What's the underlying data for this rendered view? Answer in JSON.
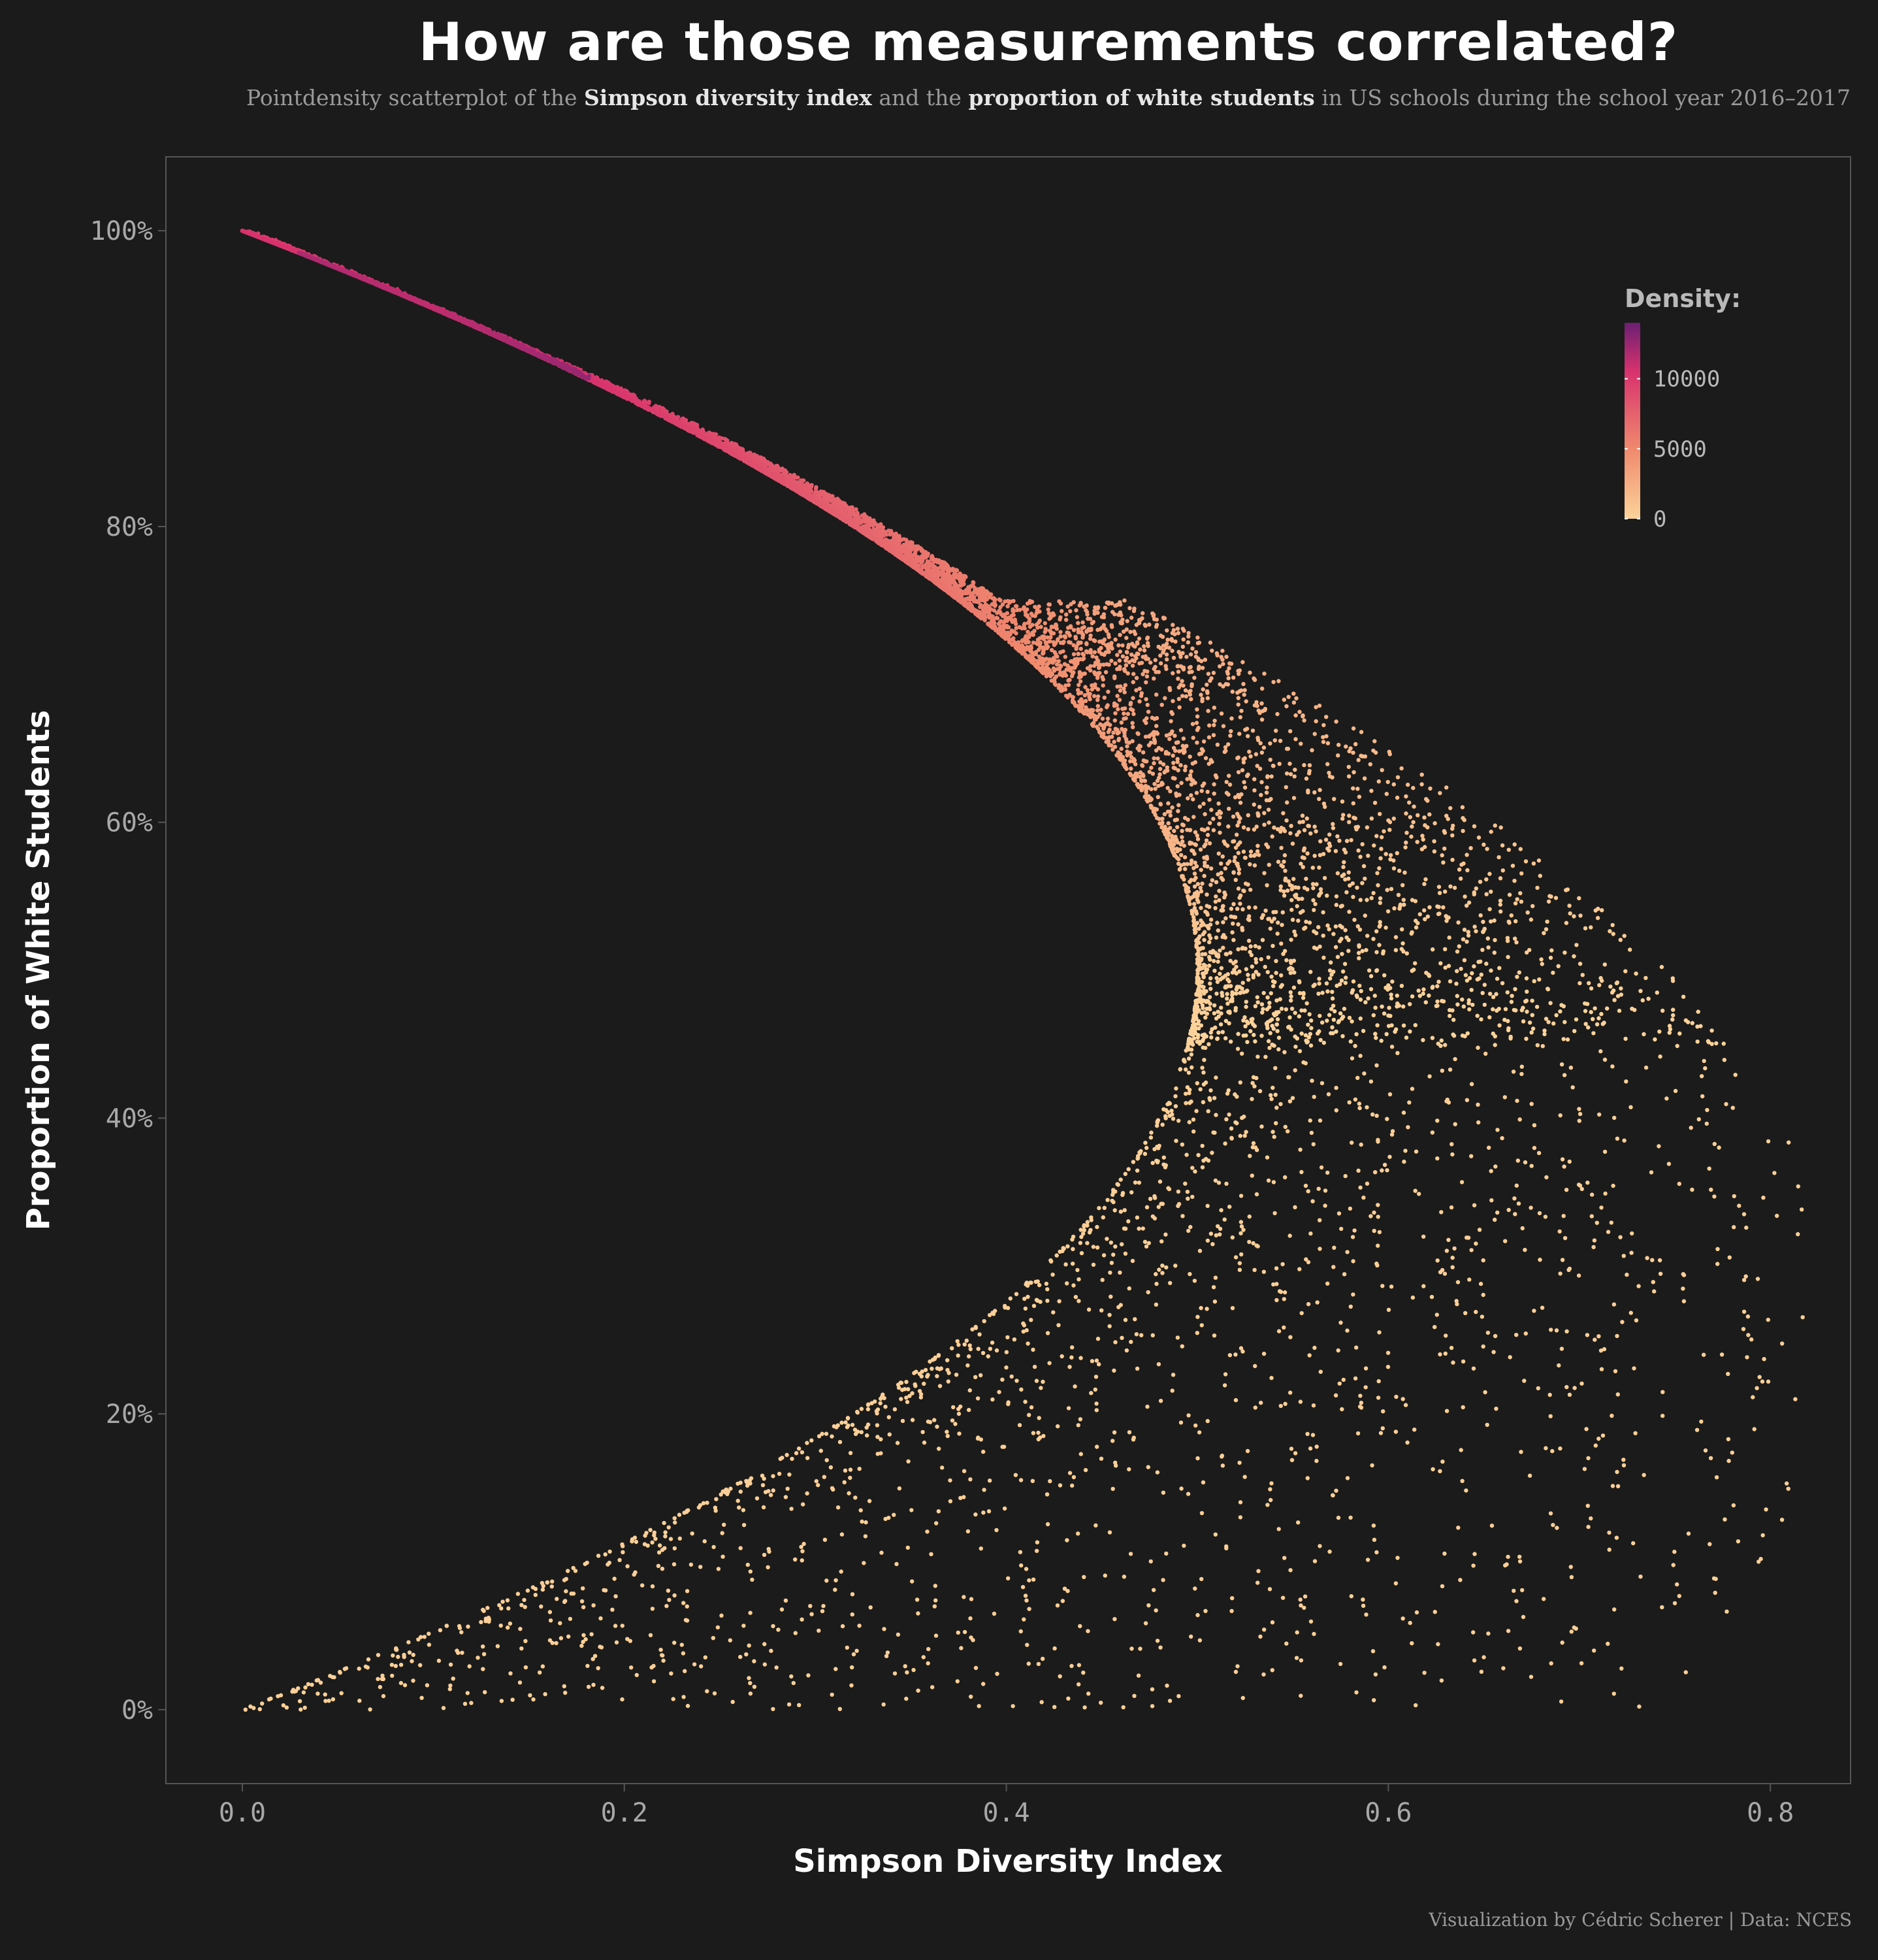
{
  "header": {
    "title": "How are those measurements correlated?",
    "subtitle_pre": "Pointdensity scatterplot of the ",
    "subtitle_b1": "Simpson diversity index",
    "subtitle_mid": " and the ",
    "subtitle_b2": "proportion of white students",
    "subtitle_post": " in US schools during the school year 2016–2017"
  },
  "caption": "Visualization by Cédric Scherer  |  Data: NCES",
  "colors": {
    "background": "#1b1b1b",
    "panel_border": "#555555",
    "axis_text": "#a8a8a8",
    "axis_title": "#ffffff",
    "density_low": "#fcd39a",
    "density_mid": "#f08a6e",
    "density_high": "#d8326d",
    "density_max": "#6b1f73"
  },
  "chart_data": {
    "type": "scatter",
    "xlabel": "Simpson Diversity Index",
    "ylabel": "Proportion of White Students",
    "xlim": [
      -0.04,
      0.842
    ],
    "ylim": [
      -0.05,
      1.05
    ],
    "x_ticks": [
      0.0,
      0.2,
      0.4,
      0.6,
      0.8
    ],
    "x_tick_labels": [
      "0.0",
      "0.2",
      "0.4",
      "0.6",
      "0.8"
    ],
    "y_ticks": [
      0,
      0.2,
      0.4,
      0.6,
      0.8,
      1.0
    ],
    "y_tick_labels": [
      "0%",
      "20%",
      "40%",
      "60%",
      "80%",
      "100%"
    ],
    "grid": false,
    "legend": {
      "title": "Density:",
      "position": "top-right",
      "range": [
        0,
        14000
      ],
      "ticks": [
        0,
        5000,
        10000
      ],
      "tick_labels": [
        "0",
        "5000",
        "10000"
      ]
    },
    "relationship": "boundary curve D = 1 - p^2 - (1-p)^2 for white proportion p; most dense points on the upper branch near p = 1",
    "series": [
      {
        "points": [
          [
            0.0,
            1.0
          ],
          [
            0.02,
            0.99
          ],
          [
            0.05,
            0.974
          ],
          [
            0.08,
            0.958
          ],
          [
            0.1,
            0.948
          ],
          [
            0.15,
            0.919
          ],
          [
            0.2,
            0.887
          ],
          [
            0.25,
            0.85
          ],
          [
            0.3,
            0.81
          ],
          [
            0.35,
            0.766
          ],
          [
            0.4,
            0.711
          ],
          [
            0.45,
            0.64
          ],
          [
            0.48,
            0.58
          ],
          [
            0.5,
            0.5
          ],
          [
            0.55,
            0.6
          ],
          [
            0.6,
            0.55
          ],
          [
            0.65,
            0.48
          ],
          [
            0.7,
            0.4
          ],
          [
            0.75,
            0.3
          ],
          [
            0.8,
            0.23
          ],
          [
            0.46,
            0.38
          ],
          [
            0.4,
            0.26
          ],
          [
            0.3,
            0.16
          ],
          [
            0.2,
            0.1
          ],
          [
            0.1,
            0.05
          ],
          [
            0.05,
            0.02
          ],
          [
            0.0,
            0.0
          ],
          [
            0.5,
            0.1
          ],
          [
            0.6,
            0.15
          ],
          [
            0.7,
            0.1
          ],
          [
            0.75,
            0.12
          ],
          [
            0.63,
            0.006
          ],
          [
            0.52,
            0.0
          ],
          [
            0.42,
            0.05
          ]
        ]
      }
    ]
  }
}
